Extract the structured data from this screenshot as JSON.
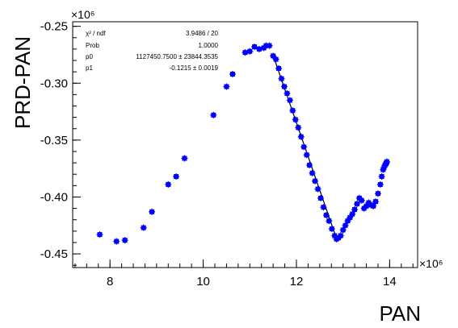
{
  "chart_data": {
    "type": "scatter",
    "title": "",
    "xlabel": "PAN",
    "ylabel": "PRD-PAN",
    "x_multiplier": "×10⁶",
    "y_multiplier": "×10⁶",
    "xlim": [
      7.2,
      14.6
    ],
    "ylim": [
      -0.462,
      -0.246
    ],
    "x_ticks": [
      8,
      10,
      12,
      14
    ],
    "x_tick_labels": [
      "8",
      "10",
      "12",
      "14"
    ],
    "y_ticks": [
      -0.45,
      -0.4,
      -0.35,
      -0.3,
      -0.25
    ],
    "y_tick_labels": [
      "-0.45",
      "-0.40",
      "-0.35",
      "-0.30",
      "-0.25"
    ],
    "grid": false,
    "marker_color": "#0000ff",
    "fit_line_color": "#000000",
    "stats_box": {
      "rows": [
        {
          "label": "χ² / ndf",
          "value": "3.9486 / 20"
        },
        {
          "label": "Prob",
          "value": "1.0000"
        },
        {
          "label": "p0",
          "value": "1127450.7500 ± 23844.3535"
        },
        {
          "label": "p1",
          "value": "-0.1215 ±  0.0019"
        }
      ]
    },
    "fit": {
      "x": [
        11.5,
        12.86
      ],
      "y": [
        -0.2755,
        -0.4365
      ]
    },
    "series": [
      {
        "x": [
          7.78,
          8.14,
          8.32,
          8.72,
          8.9,
          9.25,
          9.42,
          9.6,
          10.22,
          10.5,
          10.63,
          10.9,
          11.0,
          11.1,
          11.2,
          11.3,
          11.35,
          11.42,
          11.5,
          11.56,
          11.62,
          11.68,
          11.74,
          11.8,
          11.86,
          11.92,
          11.98,
          12.04,
          12.1,
          12.16,
          12.22,
          12.28,
          12.34,
          12.4,
          12.46,
          12.52,
          12.58,
          12.64,
          12.7,
          12.76,
          12.82,
          12.86,
          12.9,
          12.95,
          13.0,
          13.05,
          13.1,
          13.15,
          13.2,
          13.25,
          13.3,
          13.35,
          13.4,
          13.45,
          13.5,
          13.55,
          13.6,
          13.65,
          13.7,
          13.75,
          13.8,
          13.83,
          13.86,
          13.88,
          13.9,
          13.92,
          13.93,
          13.94
        ],
        "y": [
          -0.433,
          -0.439,
          -0.438,
          -0.427,
          -0.413,
          -0.389,
          -0.382,
          -0.366,
          -0.328,
          -0.303,
          -0.292,
          -0.273,
          -0.272,
          -0.268,
          -0.27,
          -0.269,
          -0.267,
          -0.267,
          -0.276,
          -0.279,
          -0.287,
          -0.296,
          -0.303,
          -0.309,
          -0.315,
          -0.324,
          -0.332,
          -0.339,
          -0.347,
          -0.356,
          -0.363,
          -0.372,
          -0.379,
          -0.386,
          -0.393,
          -0.401,
          -0.409,
          -0.416,
          -0.421,
          -0.428,
          -0.434,
          -0.437,
          -0.436,
          -0.434,
          -0.429,
          -0.425,
          -0.421,
          -0.418,
          -0.415,
          -0.411,
          -0.406,
          -0.401,
          -0.403,
          -0.41,
          -0.408,
          -0.405,
          -0.407,
          -0.408,
          -0.404,
          -0.397,
          -0.389,
          -0.382,
          -0.376,
          -0.374,
          -0.372,
          -0.371,
          -0.37,
          -0.369
        ]
      }
    ]
  }
}
